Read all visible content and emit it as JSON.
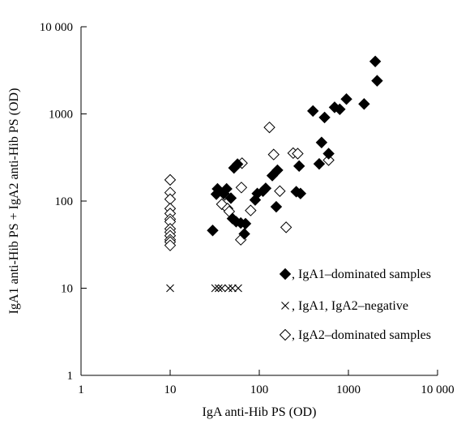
{
  "chart_data": {
    "type": "scatter",
    "title": "",
    "xlabel": "IgA anti-Hib PS (OD)",
    "ylabel": "IgA1 anti-Hib PS + IgA2 anti-Hib PS (OD)",
    "xscale": "log",
    "yscale": "log",
    "xlim": [
      1,
      10000
    ],
    "ylim": [
      1,
      10000
    ],
    "x_ticks": [
      1,
      10,
      100,
      1000,
      10000
    ],
    "y_ticks": [
      1,
      10,
      100,
      1000,
      10000
    ],
    "x_tick_labels": [
      "1",
      "10",
      "100",
      "1000",
      "10 000"
    ],
    "y_tick_labels": [
      "1",
      "10",
      "100",
      "1000",
      "10 000"
    ],
    "grid": false,
    "legend_position": "bottom-right",
    "series": [
      {
        "name": ", IgA1–dominated samples",
        "marker": "filled-diamond",
        "color": "#000000",
        "points": [
          [
            30,
            46
          ],
          [
            33,
            120
          ],
          [
            34,
            138
          ],
          [
            40,
            122
          ],
          [
            43,
            138
          ],
          [
            48,
            108
          ],
          [
            50,
            63
          ],
          [
            52,
            240
          ],
          [
            55,
            58
          ],
          [
            57,
            265
          ],
          [
            62,
            56
          ],
          [
            68,
            42
          ],
          [
            70,
            55
          ],
          [
            90,
            103
          ],
          [
            95,
            122
          ],
          [
            110,
            130
          ],
          [
            118,
            140
          ],
          [
            140,
            196
          ],
          [
            155,
            86
          ],
          [
            160,
            226
          ],
          [
            260,
            128
          ],
          [
            280,
            252
          ],
          [
            290,
            122
          ],
          [
            400,
            1080
          ],
          [
            470,
            267
          ],
          [
            500,
            470
          ],
          [
            540,
            910
          ],
          [
            600,
            350
          ],
          [
            700,
            1190
          ],
          [
            800,
            1130
          ],
          [
            950,
            1480
          ],
          [
            1500,
            1300
          ],
          [
            2000,
            4000
          ],
          [
            2100,
            2400
          ]
        ]
      },
      {
        "name": ", IgA1, IgA2–negative",
        "marker": "x",
        "color": "#000000",
        "points": [
          [
            10,
            10
          ],
          [
            32,
            10
          ],
          [
            35,
            10
          ],
          [
            38,
            10
          ],
          [
            45,
            10
          ],
          [
            50,
            10
          ],
          [
            58,
            10
          ]
        ]
      },
      {
        "name": ", IgA2–dominated samples",
        "marker": "open-diamond",
        "color": "#000000",
        "points": [
          [
            10,
            175
          ],
          [
            10,
            125
          ],
          [
            10,
            105
          ],
          [
            10,
            82
          ],
          [
            10,
            72
          ],
          [
            10,
            62
          ],
          [
            10,
            58
          ],
          [
            10,
            48
          ],
          [
            10,
            44
          ],
          [
            10,
            40
          ],
          [
            10,
            36
          ],
          [
            10,
            34
          ],
          [
            10,
            31
          ],
          [
            38,
            92
          ],
          [
            41,
            118
          ],
          [
            44,
            82
          ],
          [
            46,
            76
          ],
          [
            62,
            36
          ],
          [
            63,
            143
          ],
          [
            64,
            272
          ],
          [
            80,
            78
          ],
          [
            130,
            700
          ],
          [
            145,
            342
          ],
          [
            170,
            130
          ],
          [
            200,
            50
          ],
          [
            240,
            355
          ],
          [
            270,
            350
          ],
          [
            600,
            295
          ]
        ]
      }
    ]
  }
}
